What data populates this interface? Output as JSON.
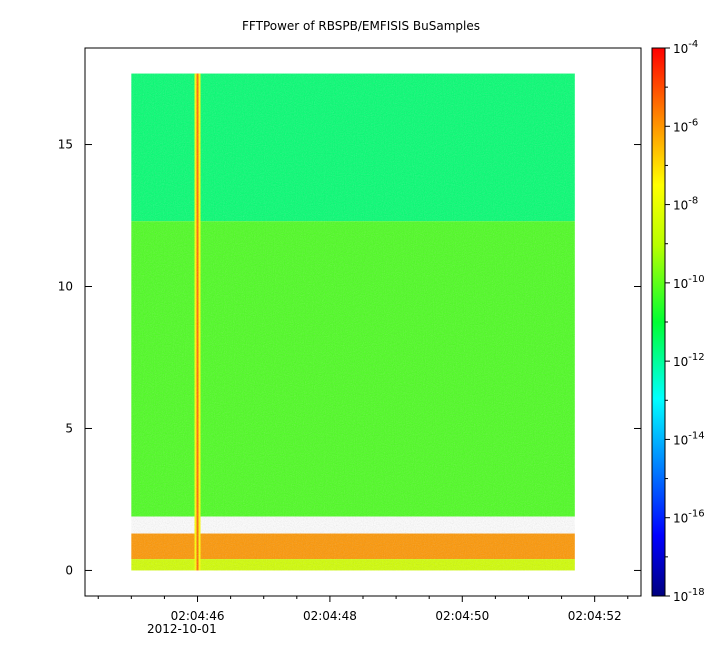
{
  "chart_data": {
    "type": "heatmap",
    "title": "FFTPower of RBSPB/EMFISIS  BuSamples",
    "xlabel": "",
    "ylabel": "",
    "x_ticks": [
      "02:04:46",
      "02:04:48",
      "02:04:50",
      "02:04:52"
    ],
    "x_date": "2012-10-01",
    "x_range_seconds": [
      "02:04:44.3",
      "02:04:52.7"
    ],
    "data_time_range": [
      "02:04:45.0",
      "02:04:51.7"
    ],
    "y_ticks": [
      0,
      5,
      10,
      15
    ],
    "ylim": [
      -0.9,
      18.4
    ],
    "y_data_range": [
      0,
      17.5
    ],
    "colorbar": {
      "scale": "log",
      "range": [
        -18,
        -4
      ],
      "tick_labels": [
        {
          "base": "10",
          "exp": "-4"
        },
        {
          "base": "10",
          "exp": "-6"
        },
        {
          "base": "10",
          "exp": "-8"
        },
        {
          "base": "10",
          "exp": "-10"
        },
        {
          "base": "10",
          "exp": "-12"
        },
        {
          "base": "10",
          "exp": "-14"
        },
        {
          "base": "10",
          "exp": "-16"
        },
        {
          "base": "10",
          "exp": "-18"
        }
      ],
      "colormap": "rainbow (blue-cyan-green-yellow-red)"
    },
    "regions": [
      {
        "y_range": [
          12.3,
          17.5
        ],
        "log_power": -11.6
      },
      {
        "y_range": [
          1.9,
          12.3
        ],
        "log_power": -10.2
      },
      {
        "y_range": [
          0.4,
          1.3
        ],
        "log_power": -6.0
      },
      {
        "y_range": [
          0,
          0.4
        ],
        "log_power": -8.5
      }
    ],
    "burst": {
      "time": "02:04:46.0",
      "log_power": -7.5
    }
  }
}
